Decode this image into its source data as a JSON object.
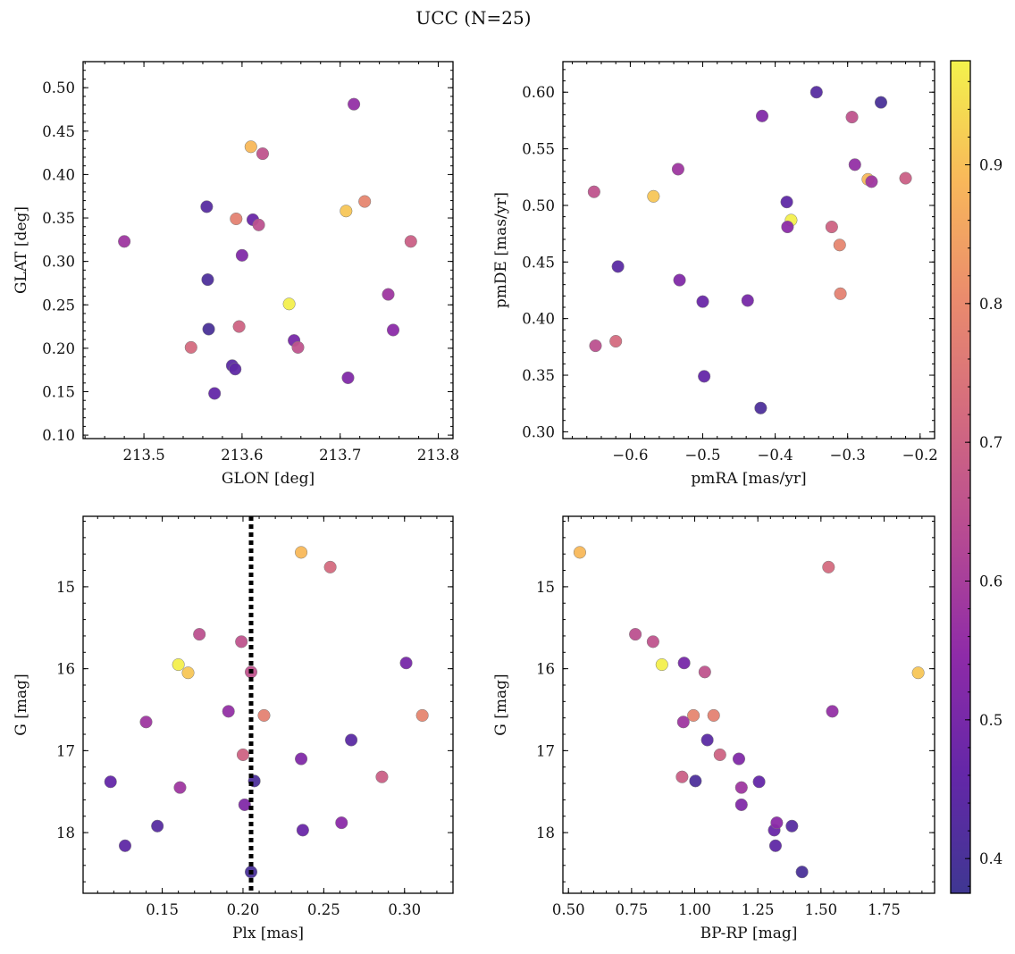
{
  "chart_data": {
    "title": "UCC (N=25)",
    "colorbar": {
      "range": [
        0.375,
        0.975
      ],
      "ticks": [
        0.4,
        0.5,
        0.6,
        0.7,
        0.8,
        0.9
      ],
      "tick_labels": [
        "0.4",
        "0.5",
        "0.6",
        "0.7",
        "0.8",
        "0.9"
      ],
      "colormap": "plasma",
      "colormap_stops": [
        "#3f3792",
        "#6427a8",
        "#8e2ba8",
        "#b64a93",
        "#d36a7f",
        "#ea8b6d",
        "#f8b85a",
        "#f3f24c"
      ]
    },
    "members": [
      {
        "glon": 213.48,
        "glat": 0.323,
        "pmra": -0.534,
        "pmde": 0.532,
        "plx": 0.14,
        "bprp": 0.955,
        "g": 16.65,
        "prob": 0.58
      },
      {
        "glon": 213.548,
        "glat": 0.201,
        "pmra": -0.62,
        "pmde": 0.38,
        "plx": 0.254,
        "bprp": 1.53,
        "g": 14.76,
        "prob": 0.72
      },
      {
        "glon": 213.564,
        "glat": 0.363,
        "pmra": -0.343,
        "pmde": 0.6,
        "plx": 0.147,
        "bprp": 1.385,
        "g": 17.92,
        "prob": 0.43
      },
      {
        "glon": 213.565,
        "glat": 0.279,
        "pmra": -0.42,
        "pmde": 0.321,
        "plx": 0.207,
        "bprp": 1.003,
        "g": 17.37,
        "prob": 0.41
      },
      {
        "glon": 213.566,
        "glat": 0.222,
        "pmra": -0.254,
        "pmde": 0.591,
        "plx": 0.205,
        "bprp": 1.425,
        "g": 18.48,
        "prob": 0.4
      },
      {
        "glon": 213.572,
        "glat": 0.148,
        "pmra": -0.498,
        "pmde": 0.349,
        "plx": 0.118,
        "bprp": 1.255,
        "g": 17.38,
        "prob": 0.46
      },
      {
        "glon": 213.59,
        "glat": 0.18,
        "pmra": -0.617,
        "pmde": 0.446,
        "plx": 0.267,
        "bprp": 1.05,
        "g": 16.87,
        "prob": 0.44
      },
      {
        "glon": 213.593,
        "glat": 0.176,
        "pmra": -0.384,
        "pmde": 0.503,
        "plx": 0.127,
        "bprp": 1.32,
        "g": 18.16,
        "prob": 0.45
      },
      {
        "glon": 213.594,
        "glat": 0.349,
        "pmra": -0.31,
        "pmde": 0.422,
        "plx": 0.213,
        "bprp": 1.075,
        "g": 16.57,
        "prob": 0.78
      },
      {
        "glon": 213.597,
        "glat": 0.225,
        "pmra": -0.322,
        "pmde": 0.481,
        "plx": 0.2,
        "bprp": 1.1,
        "g": 17.05,
        "prob": 0.7
      },
      {
        "glon": 213.6,
        "glat": 0.307,
        "pmra": -0.532,
        "pmde": 0.434,
        "plx": 0.201,
        "bprp": 1.185,
        "g": 17.66,
        "prob": 0.52
      },
      {
        "glon": 213.609,
        "glat": 0.432,
        "pmra": -0.272,
        "pmde": 0.523,
        "plx": 0.236,
        "bprp": 0.545,
        "g": 14.58,
        "prob": 0.89
      },
      {
        "glon": 213.611,
        "glat": 0.348,
        "pmra": -0.5,
        "pmde": 0.415,
        "plx": 0.237,
        "bprp": 1.315,
        "g": 17.97,
        "prob": 0.47
      },
      {
        "glon": 213.617,
        "glat": 0.342,
        "pmra": -0.648,
        "pmde": 0.376,
        "plx": 0.173,
        "bprp": 0.765,
        "g": 15.58,
        "prob": 0.65
      },
      {
        "glon": 213.621,
        "glat": 0.424,
        "pmra": -0.294,
        "pmde": 0.578,
        "plx": 0.199,
        "bprp": 0.835,
        "g": 15.67,
        "prob": 0.66
      },
      {
        "glon": 213.648,
        "glat": 0.251,
        "pmra": -0.378,
        "pmde": 0.487,
        "plx": 0.16,
        "bprp": 0.87,
        "g": 15.95,
        "prob": 0.97
      },
      {
        "glon": 213.653,
        "glat": 0.209,
        "pmra": -0.438,
        "pmde": 0.416,
        "plx": 0.301,
        "bprp": 0.958,
        "g": 15.93,
        "prob": 0.5
      },
      {
        "glon": 213.657,
        "glat": 0.201,
        "pmra": -0.65,
        "pmde": 0.512,
        "plx": 0.205,
        "bprp": 1.04,
        "g": 16.04,
        "prob": 0.66
      },
      {
        "glon": 213.706,
        "glat": 0.358,
        "pmra": -0.568,
        "pmde": 0.508,
        "plx": 0.166,
        "bprp": 1.885,
        "g": 16.05,
        "prob": 0.91
      },
      {
        "glon": 213.708,
        "glat": 0.166,
        "pmra": -0.418,
        "pmde": 0.579,
        "plx": 0.236,
        "bprp": 1.175,
        "g": 17.1,
        "prob": 0.52
      },
      {
        "glon": 213.714,
        "glat": 0.481,
        "pmra": -0.29,
        "pmde": 0.536,
        "plx": 0.191,
        "bprp": 1.545,
        "g": 16.52,
        "prob": 0.56
      },
      {
        "glon": 213.725,
        "glat": 0.369,
        "pmra": -0.311,
        "pmde": 0.465,
        "plx": 0.311,
        "bprp": 0.995,
        "g": 16.57,
        "prob": 0.79
      },
      {
        "glon": 213.749,
        "glat": 0.262,
        "pmra": -0.267,
        "pmde": 0.521,
        "plx": 0.161,
        "bprp": 1.185,
        "g": 17.45,
        "prob": 0.58
      },
      {
        "glon": 213.754,
        "glat": 0.221,
        "pmra": -0.383,
        "pmde": 0.481,
        "plx": 0.261,
        "bprp": 1.325,
        "g": 17.88,
        "prob": 0.54
      },
      {
        "glon": 213.772,
        "glat": 0.323,
        "pmra": -0.22,
        "pmde": 0.524,
        "plx": 0.286,
        "bprp": 0.95,
        "g": 17.32,
        "prob": 0.69
      }
    ],
    "panels": [
      {
        "id": "glon-glat",
        "type": "scatter",
        "x_key": "glon",
        "y_key": "glat",
        "xlabel": "GLON [deg]",
        "ylabel": "GLAT [deg]",
        "xlim": [
          213.438,
          213.815
        ],
        "ylim": [
          0.096,
          0.53
        ],
        "y_inverted": false,
        "xticks": [
          213.5,
          213.6,
          213.7,
          213.8
        ],
        "xtick_labels": [
          "213.5",
          "213.6",
          "213.7",
          "213.8"
        ],
        "yticks": [
          0.1,
          0.15,
          0.2,
          0.25,
          0.3,
          0.35,
          0.4,
          0.45,
          0.5
        ],
        "ytick_labels": [
          "0.10",
          "0.15",
          "0.20",
          "0.25",
          "0.30",
          "0.35",
          "0.40",
          "0.45",
          "0.50"
        ]
      },
      {
        "id": "pmra-pmde",
        "type": "scatter",
        "x_key": "pmra",
        "y_key": "pmde",
        "xlabel": "pmRA [mas/yr]",
        "ylabel": "pmDE [mas/yr]",
        "xlim": [
          -0.693,
          -0.18
        ],
        "ylim": [
          0.294,
          0.627
        ],
        "y_inverted": false,
        "xticks": [
          -0.6,
          -0.5,
          -0.4,
          -0.3,
          -0.2
        ],
        "xtick_labels": [
          "−0.6",
          "−0.5",
          "−0.4",
          "−0.3",
          "−0.2"
        ],
        "yticks": [
          0.3,
          0.35,
          0.4,
          0.45,
          0.5,
          0.55,
          0.6
        ],
        "ytick_labels": [
          "0.30",
          "0.35",
          "0.40",
          "0.45",
          "0.50",
          "0.55",
          "0.60"
        ]
      },
      {
        "id": "plx-g",
        "type": "scatter",
        "x_key": "plx",
        "y_key": "g",
        "xlabel": "Plx [mas]",
        "ylabel": "G [mag]",
        "xlim": [
          0.101,
          0.33
        ],
        "ylim": [
          14.14,
          18.74
        ],
        "y_inverted": true,
        "vline": {
          "x": 0.205,
          "style": "dotted"
        },
        "xticks": [
          0.15,
          0.2,
          0.25,
          0.3
        ],
        "xtick_labels": [
          "0.15",
          "0.20",
          "0.25",
          "0.30"
        ],
        "yticks": [
          15,
          16,
          17,
          18
        ],
        "ytick_labels": [
          "15",
          "16",
          "17",
          "18"
        ]
      },
      {
        "id": "bprp-g",
        "type": "scatter",
        "x_key": "bprp",
        "y_key": "g",
        "xlabel": "BP-RP [mag]",
        "ylabel": "G [mag]",
        "xlim": [
          0.478,
          1.95
        ],
        "ylim": [
          14.14,
          18.74
        ],
        "y_inverted": true,
        "xticks": [
          0.5,
          0.75,
          1.0,
          1.25,
          1.5,
          1.75
        ],
        "xtick_labels": [
          "0.50",
          "0.75",
          "1.00",
          "1.25",
          "1.50",
          "1.75"
        ],
        "yticks": [
          15,
          16,
          17,
          18
        ],
        "ytick_labels": [
          "15",
          "16",
          "17",
          "18"
        ]
      }
    ]
  }
}
